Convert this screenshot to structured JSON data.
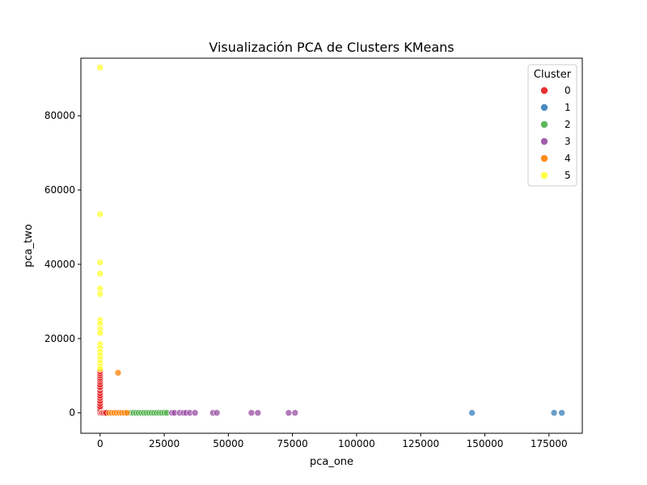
{
  "chart_data": {
    "type": "scatter",
    "title": "Visualización PCA de Clusters KMeans",
    "xlabel": "pca_one",
    "ylabel": "pca_two",
    "xlim": [
      -7500,
      188000
    ],
    "ylim": [
      -5500,
      95500
    ],
    "x_ticks": [
      0,
      25000,
      50000,
      75000,
      100000,
      125000,
      150000,
      175000
    ],
    "x_tick_labels": [
      "0",
      "25000",
      "50000",
      "75000",
      "100000",
      "125000",
      "150000",
      "175000"
    ],
    "y_ticks": [
      0,
      20000,
      40000,
      60000,
      80000
    ],
    "y_tick_labels": [
      "0",
      "20000",
      "40000",
      "60000",
      "80000"
    ],
    "grid": false,
    "legend": {
      "title": "Cluster",
      "placement": "top-right"
    },
    "series": [
      {
        "name": "0",
        "color": "#e41a1c",
        "points": [
          [
            0,
            0
          ],
          [
            0,
            400
          ],
          [
            0,
            800
          ],
          [
            0,
            1300
          ],
          [
            0,
            1800
          ],
          [
            0,
            2500
          ],
          [
            0,
            3200
          ],
          [
            0,
            4000
          ],
          [
            0,
            4600
          ],
          [
            0,
            5300
          ],
          [
            0,
            6000
          ],
          [
            0,
            6700
          ],
          [
            0,
            7000
          ],
          [
            0,
            7600
          ],
          [
            0,
            8300
          ],
          [
            0,
            8900
          ],
          [
            0,
            9400
          ],
          [
            0,
            10000
          ],
          [
            0,
            10600
          ],
          [
            0,
            11200
          ],
          [
            600,
            0
          ],
          [
            1000,
            0
          ],
          [
            1500,
            0
          ],
          [
            2000,
            0
          ],
          [
            2500,
            0
          ]
        ]
      },
      {
        "name": "1",
        "color": "#377eb8",
        "points": [
          [
            145000,
            0
          ],
          [
            177000,
            0
          ],
          [
            180000,
            0
          ]
        ]
      },
      {
        "name": "2",
        "color": "#4daf4a",
        "points": [
          [
            12000,
            0
          ],
          [
            13000,
            0
          ],
          [
            14000,
            0
          ],
          [
            15000,
            0
          ],
          [
            16000,
            0
          ],
          [
            17000,
            0
          ],
          [
            18000,
            0
          ],
          [
            19000,
            0
          ],
          [
            20000,
            0
          ],
          [
            21000,
            0
          ],
          [
            22000,
            0
          ],
          [
            23000,
            0
          ],
          [
            24000,
            0
          ],
          [
            25000,
            0
          ],
          [
            26000,
            0
          ]
        ]
      },
      {
        "name": "3",
        "color": "#984ea3",
        "points": [
          [
            28000,
            0
          ],
          [
            29000,
            0
          ],
          [
            31000,
            0
          ],
          [
            32500,
            0
          ],
          [
            33500,
            0
          ],
          [
            35000,
            0
          ],
          [
            37000,
            0
          ],
          [
            44000,
            0
          ],
          [
            45500,
            0
          ],
          [
            59000,
            0
          ],
          [
            61500,
            0
          ],
          [
            73500,
            0
          ],
          [
            76000,
            0
          ]
        ]
      },
      {
        "name": "4",
        "color": "#ff7f00",
        "points": [
          [
            7000,
            10800
          ],
          [
            3500,
            0
          ],
          [
            4500,
            0
          ],
          [
            5500,
            0
          ],
          [
            6500,
            0
          ],
          [
            7500,
            0
          ],
          [
            8500,
            0
          ],
          [
            9500,
            0
          ],
          [
            10500,
            0
          ]
        ]
      },
      {
        "name": "5",
        "color": "#ffff33",
        "points": [
          [
            0,
            93000
          ],
          [
            0,
            53500
          ],
          [
            0,
            40500
          ],
          [
            0,
            37500
          ],
          [
            0,
            33500
          ],
          [
            0,
            32000
          ],
          [
            0,
            25000
          ],
          [
            0,
            24000
          ],
          [
            0,
            22500
          ],
          [
            0,
            21500
          ],
          [
            0,
            18500
          ],
          [
            0,
            17500
          ],
          [
            0,
            16500
          ],
          [
            0,
            15500
          ],
          [
            0,
            14500
          ],
          [
            0,
            13500
          ],
          [
            0,
            12500
          ],
          [
            0,
            11800
          ]
        ]
      }
    ]
  }
}
